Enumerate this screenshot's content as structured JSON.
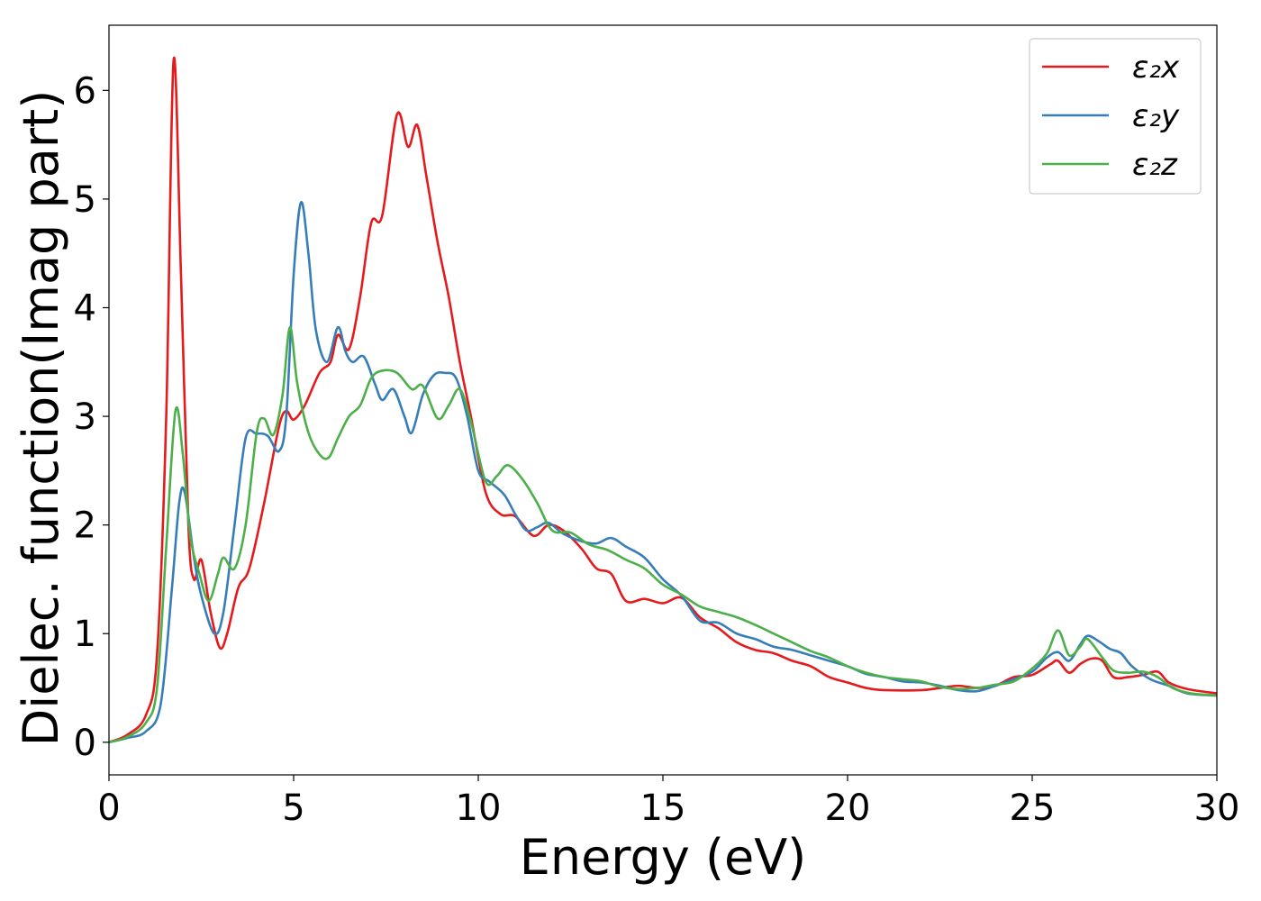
{
  "chart_data": {
    "type": "line",
    "xlabel": "Energy (eV)",
    "ylabel": "Dielec. function(Imag part)",
    "xlim": [
      0,
      30
    ],
    "ylim": [
      -0.3,
      6.6
    ],
    "xticks": [
      0,
      5,
      10,
      15,
      20,
      25,
      30
    ],
    "yticks": [
      0,
      1,
      2,
      3,
      4,
      5,
      6
    ],
    "legend_position": "top-right",
    "grid": false,
    "series": [
      {
        "name": "ε₂x",
        "color": "#e41a1c",
        "points": [
          [
            0,
            0
          ],
          [
            0.5,
            0.07
          ],
          [
            1.0,
            0.25
          ],
          [
            1.3,
            0.8
          ],
          [
            1.55,
            3.0
          ],
          [
            1.75,
            6.28
          ],
          [
            1.95,
            4.3
          ],
          [
            2.15,
            2.0
          ],
          [
            2.3,
            1.5
          ],
          [
            2.5,
            1.68
          ],
          [
            2.75,
            1.2
          ],
          [
            3.0,
            0.87
          ],
          [
            3.2,
            1.0
          ],
          [
            3.5,
            1.42
          ],
          [
            3.8,
            1.6
          ],
          [
            4.2,
            2.2
          ],
          [
            4.6,
            2.9
          ],
          [
            4.8,
            3.05
          ],
          [
            5.0,
            2.97
          ],
          [
            5.3,
            3.1
          ],
          [
            5.7,
            3.4
          ],
          [
            6.0,
            3.5
          ],
          [
            6.2,
            3.75
          ],
          [
            6.5,
            3.62
          ],
          [
            6.8,
            4.1
          ],
          [
            7.1,
            4.78
          ],
          [
            7.4,
            4.85
          ],
          [
            7.8,
            5.78
          ],
          [
            8.1,
            5.48
          ],
          [
            8.35,
            5.68
          ],
          [
            8.6,
            5.2
          ],
          [
            8.9,
            4.6
          ],
          [
            9.2,
            4.1
          ],
          [
            9.5,
            3.5
          ],
          [
            9.8,
            3.0
          ],
          [
            10.2,
            2.3
          ],
          [
            10.6,
            2.1
          ],
          [
            11.0,
            2.08
          ],
          [
            11.5,
            1.9
          ],
          [
            11.9,
            2.0
          ],
          [
            12.3,
            1.95
          ],
          [
            12.8,
            1.78
          ],
          [
            13.2,
            1.6
          ],
          [
            13.6,
            1.55
          ],
          [
            14.0,
            1.3
          ],
          [
            14.5,
            1.32
          ],
          [
            15.0,
            1.28
          ],
          [
            15.5,
            1.33
          ],
          [
            16.0,
            1.15
          ],
          [
            16.5,
            1.05
          ],
          [
            17.0,
            0.92
          ],
          [
            17.5,
            0.85
          ],
          [
            18.0,
            0.82
          ],
          [
            18.5,
            0.75
          ],
          [
            19.0,
            0.7
          ],
          [
            19.5,
            0.6
          ],
          [
            20.0,
            0.55
          ],
          [
            20.5,
            0.5
          ],
          [
            21.0,
            0.48
          ],
          [
            22.0,
            0.48
          ],
          [
            22.5,
            0.5
          ],
          [
            23.0,
            0.52
          ],
          [
            23.5,
            0.5
          ],
          [
            24.0,
            0.52
          ],
          [
            24.5,
            0.6
          ],
          [
            25.0,
            0.62
          ],
          [
            25.5,
            0.72
          ],
          [
            25.7,
            0.75
          ],
          [
            26.0,
            0.64
          ],
          [
            26.3,
            0.72
          ],
          [
            26.6,
            0.77
          ],
          [
            26.9,
            0.75
          ],
          [
            27.2,
            0.6
          ],
          [
            27.6,
            0.6
          ],
          [
            28.0,
            0.62
          ],
          [
            28.4,
            0.65
          ],
          [
            28.7,
            0.55
          ],
          [
            29.2,
            0.49
          ],
          [
            30.0,
            0.45
          ]
        ]
      },
      {
        "name": "ε₂y",
        "color": "#377eb8",
        "points": [
          [
            0,
            0
          ],
          [
            0.5,
            0.04
          ],
          [
            1.0,
            0.1
          ],
          [
            1.4,
            0.35
          ],
          [
            1.7,
            1.4
          ],
          [
            1.9,
            2.2
          ],
          [
            2.05,
            2.3
          ],
          [
            2.3,
            1.7
          ],
          [
            2.5,
            1.35
          ],
          [
            2.85,
            1.0
          ],
          [
            3.1,
            1.2
          ],
          [
            3.4,
            2.0
          ],
          [
            3.7,
            2.8
          ],
          [
            4.0,
            2.84
          ],
          [
            4.3,
            2.82
          ],
          [
            4.6,
            2.68
          ],
          [
            4.8,
            3.0
          ],
          [
            5.0,
            4.3
          ],
          [
            5.2,
            4.97
          ],
          [
            5.4,
            4.5
          ],
          [
            5.6,
            3.8
          ],
          [
            5.9,
            3.5
          ],
          [
            6.2,
            3.82
          ],
          [
            6.4,
            3.6
          ],
          [
            6.6,
            3.5
          ],
          [
            6.9,
            3.55
          ],
          [
            7.2,
            3.3
          ],
          [
            7.4,
            3.15
          ],
          [
            7.7,
            3.25
          ],
          [
            8.0,
            3.0
          ],
          [
            8.2,
            2.85
          ],
          [
            8.5,
            3.2
          ],
          [
            8.8,
            3.38
          ],
          [
            9.1,
            3.4
          ],
          [
            9.4,
            3.35
          ],
          [
            9.7,
            3.0
          ],
          [
            10.0,
            2.5
          ],
          [
            10.3,
            2.4
          ],
          [
            10.7,
            2.28
          ],
          [
            11.0,
            2.1
          ],
          [
            11.3,
            1.95
          ],
          [
            11.6,
            1.98
          ],
          [
            11.9,
            2.02
          ],
          [
            12.3,
            1.92
          ],
          [
            12.8,
            1.85
          ],
          [
            13.2,
            1.83
          ],
          [
            13.6,
            1.88
          ],
          [
            14.0,
            1.8
          ],
          [
            14.5,
            1.7
          ],
          [
            15.0,
            1.5
          ],
          [
            15.5,
            1.35
          ],
          [
            16.0,
            1.12
          ],
          [
            16.5,
            1.1
          ],
          [
            17.0,
            1.0
          ],
          [
            17.5,
            0.95
          ],
          [
            18.0,
            0.88
          ],
          [
            18.5,
            0.85
          ],
          [
            19.0,
            0.8
          ],
          [
            19.5,
            0.75
          ],
          [
            20.0,
            0.7
          ],
          [
            20.5,
            0.63
          ],
          [
            21.0,
            0.6
          ],
          [
            21.5,
            0.56
          ],
          [
            22.0,
            0.55
          ],
          [
            22.5,
            0.52
          ],
          [
            23.0,
            0.48
          ],
          [
            23.5,
            0.47
          ],
          [
            24.0,
            0.52
          ],
          [
            24.5,
            0.58
          ],
          [
            25.0,
            0.65
          ],
          [
            25.4,
            0.78
          ],
          [
            25.7,
            0.83
          ],
          [
            26.0,
            0.75
          ],
          [
            26.3,
            0.9
          ],
          [
            26.5,
            0.98
          ],
          [
            26.8,
            0.93
          ],
          [
            27.1,
            0.86
          ],
          [
            27.4,
            0.82
          ],
          [
            27.7,
            0.7
          ],
          [
            28.2,
            0.58
          ],
          [
            28.7,
            0.52
          ],
          [
            29.2,
            0.45
          ],
          [
            30.0,
            0.43
          ]
        ]
      },
      {
        "name": "ε₂z",
        "color": "#4daf4a",
        "points": [
          [
            0,
            0
          ],
          [
            0.5,
            0.05
          ],
          [
            1.0,
            0.18
          ],
          [
            1.3,
            0.5
          ],
          [
            1.55,
            1.8
          ],
          [
            1.8,
            3.05
          ],
          [
            2.0,
            2.65
          ],
          [
            2.2,
            1.9
          ],
          [
            2.45,
            1.55
          ],
          [
            2.7,
            1.3
          ],
          [
            2.95,
            1.55
          ],
          [
            3.1,
            1.7
          ],
          [
            3.4,
            1.6
          ],
          [
            3.7,
            2.0
          ],
          [
            4.0,
            2.85
          ],
          [
            4.2,
            2.98
          ],
          [
            4.45,
            2.83
          ],
          [
            4.7,
            3.2
          ],
          [
            4.9,
            3.82
          ],
          [
            5.1,
            3.3
          ],
          [
            5.4,
            2.85
          ],
          [
            5.7,
            2.65
          ],
          [
            5.95,
            2.62
          ],
          [
            6.2,
            2.8
          ],
          [
            6.5,
            3.0
          ],
          [
            6.8,
            3.1
          ],
          [
            7.1,
            3.35
          ],
          [
            7.4,
            3.42
          ],
          [
            7.8,
            3.4
          ],
          [
            8.2,
            3.25
          ],
          [
            8.5,
            3.28
          ],
          [
            8.9,
            2.98
          ],
          [
            9.2,
            3.1
          ],
          [
            9.5,
            3.25
          ],
          [
            9.8,
            2.95
          ],
          [
            10.2,
            2.4
          ],
          [
            10.5,
            2.45
          ],
          [
            10.8,
            2.55
          ],
          [
            11.2,
            2.42
          ],
          [
            11.6,
            2.2
          ],
          [
            12.0,
            1.95
          ],
          [
            12.5,
            1.93
          ],
          [
            13.0,
            1.82
          ],
          [
            13.5,
            1.77
          ],
          [
            14.0,
            1.68
          ],
          [
            14.5,
            1.6
          ],
          [
            15.0,
            1.45
          ],
          [
            15.5,
            1.36
          ],
          [
            16.0,
            1.25
          ],
          [
            16.5,
            1.2
          ],
          [
            17.0,
            1.15
          ],
          [
            17.5,
            1.08
          ],
          [
            18.0,
            1.0
          ],
          [
            18.5,
            0.92
          ],
          [
            19.0,
            0.84
          ],
          [
            19.5,
            0.78
          ],
          [
            20.0,
            0.7
          ],
          [
            20.5,
            0.64
          ],
          [
            21.0,
            0.6
          ],
          [
            21.5,
            0.58
          ],
          [
            22.0,
            0.56
          ],
          [
            22.5,
            0.51
          ],
          [
            23.0,
            0.49
          ],
          [
            23.5,
            0.5
          ],
          [
            24.0,
            0.53
          ],
          [
            24.5,
            0.56
          ],
          [
            25.0,
            0.68
          ],
          [
            25.4,
            0.82
          ],
          [
            25.7,
            1.03
          ],
          [
            26.0,
            0.8
          ],
          [
            26.3,
            0.88
          ],
          [
            26.5,
            0.95
          ],
          [
            26.9,
            0.78
          ],
          [
            27.2,
            0.66
          ],
          [
            27.6,
            0.64
          ],
          [
            28.0,
            0.65
          ],
          [
            28.4,
            0.6
          ],
          [
            28.8,
            0.5
          ],
          [
            29.3,
            0.45
          ],
          [
            30.0,
            0.43
          ]
        ]
      }
    ]
  }
}
